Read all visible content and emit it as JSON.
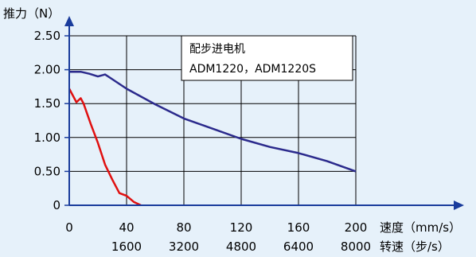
{
  "chart_data": {
    "type": "line",
    "ylabel": "推力（N）",
    "xlabel": "速度（mm/s）",
    "xlabel2": "转速（步/s）",
    "xlim": [
      0,
      200
    ],
    "ylim": [
      0,
      2.5
    ],
    "x_ticks": [
      0,
      40,
      80,
      120,
      160,
      200
    ],
    "x_tick_labels": [
      "0",
      "40",
      "80",
      "120",
      "160",
      "200"
    ],
    "x2_tick_labels": [
      "",
      "1600",
      "3200",
      "4800",
      "6400",
      "8000"
    ],
    "y_ticks": [
      0,
      0.5,
      1.0,
      1.5,
      2.0,
      2.5
    ],
    "y_tick_labels": [
      "0",
      "0.50",
      "1.00",
      "1.50",
      "2.00",
      "2.50"
    ],
    "grid": true,
    "legend": {
      "position": "top-right",
      "lines": [
        "配步进电机",
        "ADM1220，ADM1220S"
      ]
    },
    "series": [
      {
        "color": "#2b2a8c",
        "x": [
          0,
          8,
          14,
          20,
          25,
          30,
          40,
          60,
          80,
          100,
          120,
          140,
          160,
          180,
          200
        ],
        "y": [
          1.97,
          1.97,
          1.94,
          1.9,
          1.93,
          1.86,
          1.72,
          1.49,
          1.28,
          1.13,
          0.98,
          0.86,
          0.77,
          0.65,
          0.5
        ]
      },
      {
        "color": "#e01010",
        "x": [
          0,
          5,
          8,
          10,
          15,
          20,
          25,
          30,
          35,
          40,
          45,
          50
        ],
        "y": [
          1.72,
          1.52,
          1.58,
          1.5,
          1.2,
          0.92,
          0.6,
          0.38,
          0.18,
          0.14,
          0.05,
          0.0
        ]
      }
    ]
  }
}
